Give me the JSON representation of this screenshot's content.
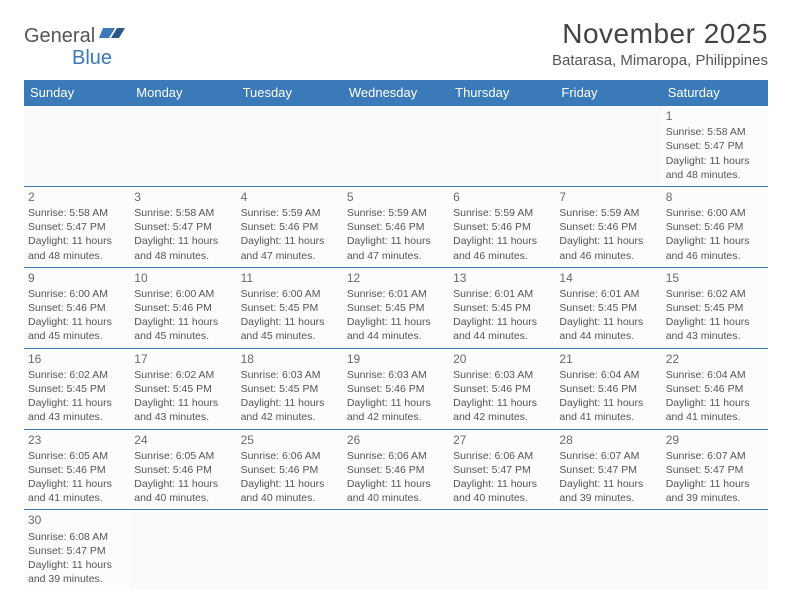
{
  "logo": {
    "text1": "General",
    "text2": "Blue"
  },
  "title": "November 2025",
  "location": "Batarasa, Mimaropa, Philippines",
  "colors": {
    "header_bg": "#3a7ab8",
    "logo_accent": "#3a7ab8",
    "text": "#555555",
    "border": "#3a7ab8",
    "page_bg": "#ffffff"
  },
  "day_labels": [
    "Sunday",
    "Monday",
    "Tuesday",
    "Wednesday",
    "Thursday",
    "Friday",
    "Saturday"
  ],
  "weeks": [
    [
      {
        "blank": true
      },
      {
        "blank": true
      },
      {
        "blank": true
      },
      {
        "blank": true
      },
      {
        "blank": true
      },
      {
        "blank": true
      },
      {
        "day": "1",
        "sunrise": "Sunrise: 5:58 AM",
        "sunset": "Sunset: 5:47 PM",
        "daylight1": "Daylight: 11 hours",
        "daylight2": "and 48 minutes."
      }
    ],
    [
      {
        "day": "2",
        "sunrise": "Sunrise: 5:58 AM",
        "sunset": "Sunset: 5:47 PM",
        "daylight1": "Daylight: 11 hours",
        "daylight2": "and 48 minutes."
      },
      {
        "day": "3",
        "sunrise": "Sunrise: 5:58 AM",
        "sunset": "Sunset: 5:47 PM",
        "daylight1": "Daylight: 11 hours",
        "daylight2": "and 48 minutes."
      },
      {
        "day": "4",
        "sunrise": "Sunrise: 5:59 AM",
        "sunset": "Sunset: 5:46 PM",
        "daylight1": "Daylight: 11 hours",
        "daylight2": "and 47 minutes."
      },
      {
        "day": "5",
        "sunrise": "Sunrise: 5:59 AM",
        "sunset": "Sunset: 5:46 PM",
        "daylight1": "Daylight: 11 hours",
        "daylight2": "and 47 minutes."
      },
      {
        "day": "6",
        "sunrise": "Sunrise: 5:59 AM",
        "sunset": "Sunset: 5:46 PM",
        "daylight1": "Daylight: 11 hours",
        "daylight2": "and 46 minutes."
      },
      {
        "day": "7",
        "sunrise": "Sunrise: 5:59 AM",
        "sunset": "Sunset: 5:46 PM",
        "daylight1": "Daylight: 11 hours",
        "daylight2": "and 46 minutes."
      },
      {
        "day": "8",
        "sunrise": "Sunrise: 6:00 AM",
        "sunset": "Sunset: 5:46 PM",
        "daylight1": "Daylight: 11 hours",
        "daylight2": "and 46 minutes."
      }
    ],
    [
      {
        "day": "9",
        "sunrise": "Sunrise: 6:00 AM",
        "sunset": "Sunset: 5:46 PM",
        "daylight1": "Daylight: 11 hours",
        "daylight2": "and 45 minutes."
      },
      {
        "day": "10",
        "sunrise": "Sunrise: 6:00 AM",
        "sunset": "Sunset: 5:46 PM",
        "daylight1": "Daylight: 11 hours",
        "daylight2": "and 45 minutes."
      },
      {
        "day": "11",
        "sunrise": "Sunrise: 6:00 AM",
        "sunset": "Sunset: 5:45 PM",
        "daylight1": "Daylight: 11 hours",
        "daylight2": "and 45 minutes."
      },
      {
        "day": "12",
        "sunrise": "Sunrise: 6:01 AM",
        "sunset": "Sunset: 5:45 PM",
        "daylight1": "Daylight: 11 hours",
        "daylight2": "and 44 minutes."
      },
      {
        "day": "13",
        "sunrise": "Sunrise: 6:01 AM",
        "sunset": "Sunset: 5:45 PM",
        "daylight1": "Daylight: 11 hours",
        "daylight2": "and 44 minutes."
      },
      {
        "day": "14",
        "sunrise": "Sunrise: 6:01 AM",
        "sunset": "Sunset: 5:45 PM",
        "daylight1": "Daylight: 11 hours",
        "daylight2": "and 44 minutes."
      },
      {
        "day": "15",
        "sunrise": "Sunrise: 6:02 AM",
        "sunset": "Sunset: 5:45 PM",
        "daylight1": "Daylight: 11 hours",
        "daylight2": "and 43 minutes."
      }
    ],
    [
      {
        "day": "16",
        "sunrise": "Sunrise: 6:02 AM",
        "sunset": "Sunset: 5:45 PM",
        "daylight1": "Daylight: 11 hours",
        "daylight2": "and 43 minutes."
      },
      {
        "day": "17",
        "sunrise": "Sunrise: 6:02 AM",
        "sunset": "Sunset: 5:45 PM",
        "daylight1": "Daylight: 11 hours",
        "daylight2": "and 43 minutes."
      },
      {
        "day": "18",
        "sunrise": "Sunrise: 6:03 AM",
        "sunset": "Sunset: 5:45 PM",
        "daylight1": "Daylight: 11 hours",
        "daylight2": "and 42 minutes."
      },
      {
        "day": "19",
        "sunrise": "Sunrise: 6:03 AM",
        "sunset": "Sunset: 5:46 PM",
        "daylight1": "Daylight: 11 hours",
        "daylight2": "and 42 minutes."
      },
      {
        "day": "20",
        "sunrise": "Sunrise: 6:03 AM",
        "sunset": "Sunset: 5:46 PM",
        "daylight1": "Daylight: 11 hours",
        "daylight2": "and 42 minutes."
      },
      {
        "day": "21",
        "sunrise": "Sunrise: 6:04 AM",
        "sunset": "Sunset: 5:46 PM",
        "daylight1": "Daylight: 11 hours",
        "daylight2": "and 41 minutes."
      },
      {
        "day": "22",
        "sunrise": "Sunrise: 6:04 AM",
        "sunset": "Sunset: 5:46 PM",
        "daylight1": "Daylight: 11 hours",
        "daylight2": "and 41 minutes."
      }
    ],
    [
      {
        "day": "23",
        "sunrise": "Sunrise: 6:05 AM",
        "sunset": "Sunset: 5:46 PM",
        "daylight1": "Daylight: 11 hours",
        "daylight2": "and 41 minutes."
      },
      {
        "day": "24",
        "sunrise": "Sunrise: 6:05 AM",
        "sunset": "Sunset: 5:46 PM",
        "daylight1": "Daylight: 11 hours",
        "daylight2": "and 40 minutes."
      },
      {
        "day": "25",
        "sunrise": "Sunrise: 6:06 AM",
        "sunset": "Sunset: 5:46 PM",
        "daylight1": "Daylight: 11 hours",
        "daylight2": "and 40 minutes."
      },
      {
        "day": "26",
        "sunrise": "Sunrise: 6:06 AM",
        "sunset": "Sunset: 5:46 PM",
        "daylight1": "Daylight: 11 hours",
        "daylight2": "and 40 minutes."
      },
      {
        "day": "27",
        "sunrise": "Sunrise: 6:06 AM",
        "sunset": "Sunset: 5:47 PM",
        "daylight1": "Daylight: 11 hours",
        "daylight2": "and 40 minutes."
      },
      {
        "day": "28",
        "sunrise": "Sunrise: 6:07 AM",
        "sunset": "Sunset: 5:47 PM",
        "daylight1": "Daylight: 11 hours",
        "daylight2": "and 39 minutes."
      },
      {
        "day": "29",
        "sunrise": "Sunrise: 6:07 AM",
        "sunset": "Sunset: 5:47 PM",
        "daylight1": "Daylight: 11 hours",
        "daylight2": "and 39 minutes."
      }
    ],
    [
      {
        "day": "30",
        "sunrise": "Sunrise: 6:08 AM",
        "sunset": "Sunset: 5:47 PM",
        "daylight1": "Daylight: 11 hours",
        "daylight2": "and 39 minutes."
      },
      {
        "blank": true
      },
      {
        "blank": true
      },
      {
        "blank": true
      },
      {
        "blank": true
      },
      {
        "blank": true
      },
      {
        "blank": true
      }
    ]
  ]
}
